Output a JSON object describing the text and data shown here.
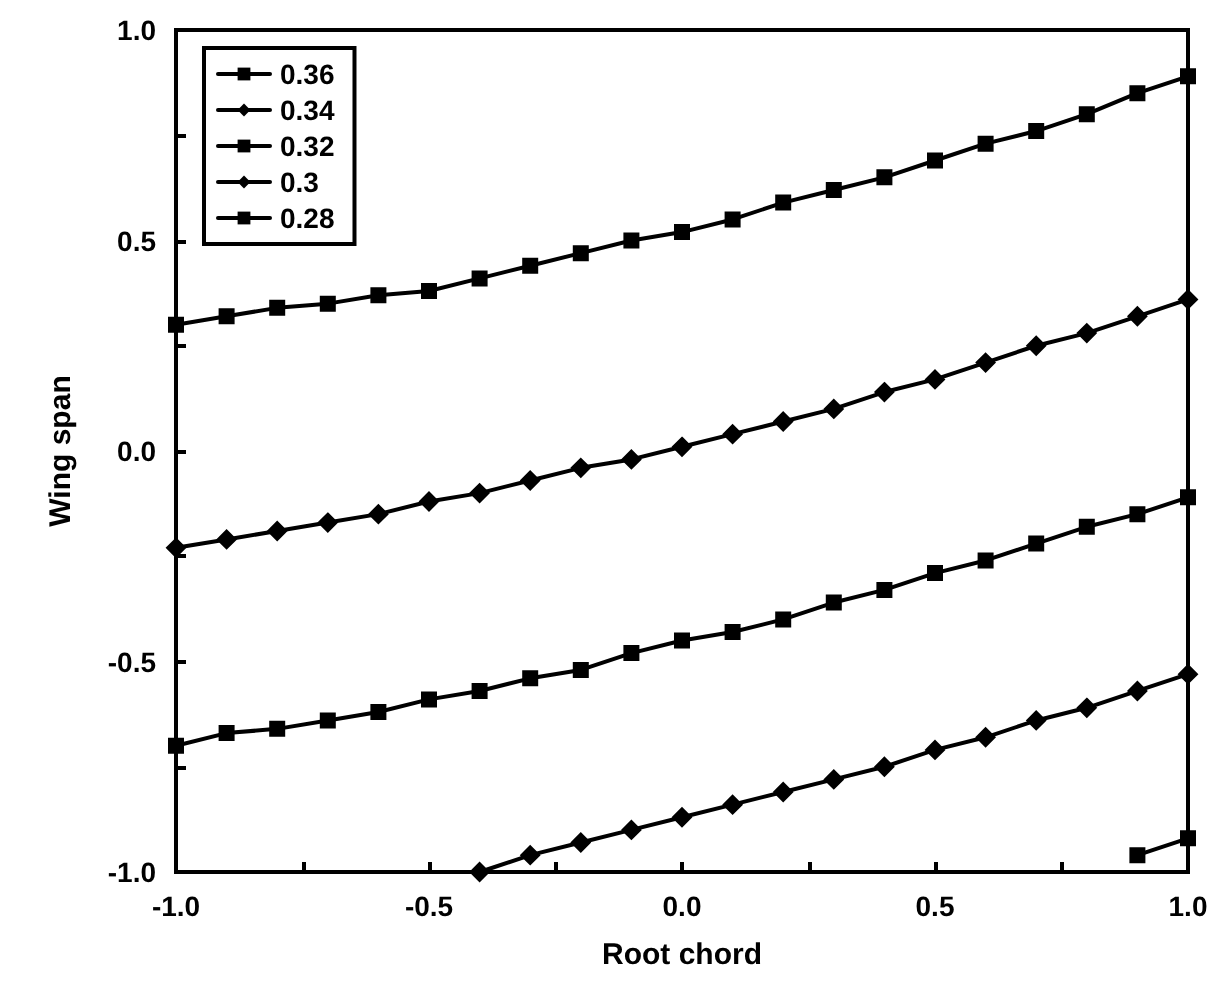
{
  "chart_data": {
    "type": "line",
    "xlabel": "Root chord",
    "ylabel": "Wing span",
    "xlim": [
      -1,
      1
    ],
    "ylim": [
      -1,
      1
    ],
    "xticks": [
      {
        "value": -1,
        "label": "-1.0"
      },
      {
        "value": -0.75,
        "label": null
      },
      {
        "value": -0.5,
        "label": "-0.5"
      },
      {
        "value": -0.25,
        "label": null
      },
      {
        "value": 0,
        "label": "0.0"
      },
      {
        "value": 0.25,
        "label": null
      },
      {
        "value": 0.5,
        "label": "0.5"
      },
      {
        "value": 0.75,
        "label": null
      },
      {
        "value": 1,
        "label": "1.0"
      }
    ],
    "yticks": [
      {
        "value": -1,
        "label": "-1.0"
      },
      {
        "value": -0.75,
        "label": null
      },
      {
        "value": -0.5,
        "label": "-0.5"
      },
      {
        "value": -0.25,
        "label": null
      },
      {
        "value": 0,
        "label": "0.0"
      },
      {
        "value": 0.25,
        "label": null
      },
      {
        "value": 0.5,
        "label": "0.5"
      },
      {
        "value": 0.75,
        "label": null
      },
      {
        "value": 1,
        "label": "1.0"
      }
    ],
    "grid": false,
    "legend": "top left",
    "line_style": "solid",
    "series": [
      {
        "name": "0.36",
        "color": "#000000",
        "marker": "square",
        "x": [
          -1,
          -0.9,
          -0.8,
          -0.7,
          -0.6,
          -0.5,
          -0.4,
          -0.3,
          -0.2,
          -0.1,
          0,
          0.1,
          0.2,
          0.3,
          0.4,
          0.5,
          0.6,
          0.7,
          0.8,
          0.9,
          1
        ],
        "values": [
          0.3,
          0.32,
          0.34,
          0.35,
          0.37,
          0.38,
          0.41,
          0.44,
          0.47,
          0.5,
          0.52,
          0.55,
          0.59,
          0.62,
          0.65,
          0.69,
          0.73,
          0.76,
          0.8,
          0.85,
          0.89
        ]
      },
      {
        "name": "0.34",
        "color": "#000000",
        "marker": "diamond",
        "x": [
          -1,
          -0.9,
          -0.8,
          -0.7,
          -0.6,
          -0.5,
          -0.4,
          -0.3,
          -0.2,
          -0.1,
          0,
          0.1,
          0.2,
          0.3,
          0.4,
          0.5,
          0.6,
          0.7,
          0.8,
          0.9,
          1
        ],
        "values": [
          -0.23,
          -0.21,
          -0.19,
          -0.17,
          -0.15,
          -0.12,
          -0.1,
          -0.07,
          -0.04,
          -0.02,
          0.01,
          0.04,
          0.07,
          0.1,
          0.14,
          0.17,
          0.21,
          0.25,
          0.28,
          0.32,
          0.36
        ]
      },
      {
        "name": "0.32",
        "color": "#000000",
        "marker": "square",
        "x": [
          -1,
          -0.9,
          -0.8,
          -0.7,
          -0.6,
          -0.5,
          -0.4,
          -0.3,
          -0.2,
          -0.1,
          0,
          0.1,
          0.2,
          0.3,
          0.4,
          0.5,
          0.6,
          0.7,
          0.8,
          0.9,
          1
        ],
        "values": [
          -0.7,
          -0.67,
          -0.66,
          -0.64,
          -0.62,
          -0.59,
          -0.57,
          -0.54,
          -0.52,
          -0.48,
          -0.45,
          -0.43,
          -0.4,
          -0.36,
          -0.33,
          -0.29,
          -0.26,
          -0.22,
          -0.18,
          -0.15,
          -0.11
        ]
      },
      {
        "name": "0.3",
        "color": "#000000",
        "marker": "diamond",
        "x": [
          -0.4,
          -0.3,
          -0.2,
          -0.1,
          0,
          0.1,
          0.2,
          0.3,
          0.4,
          0.5,
          0.6,
          0.7,
          0.8,
          0.9,
          1
        ],
        "values": [
          -1.0,
          -0.96,
          -0.93,
          -0.9,
          -0.87,
          -0.84,
          -0.81,
          -0.78,
          -0.75,
          -0.71,
          -0.68,
          -0.64,
          -0.61,
          -0.57,
          -0.53
        ]
      },
      {
        "name": "0.28",
        "color": "#000000",
        "marker": "square",
        "x": [
          0.9,
          1
        ],
        "values": [
          -0.96,
          -0.92
        ]
      }
    ]
  }
}
